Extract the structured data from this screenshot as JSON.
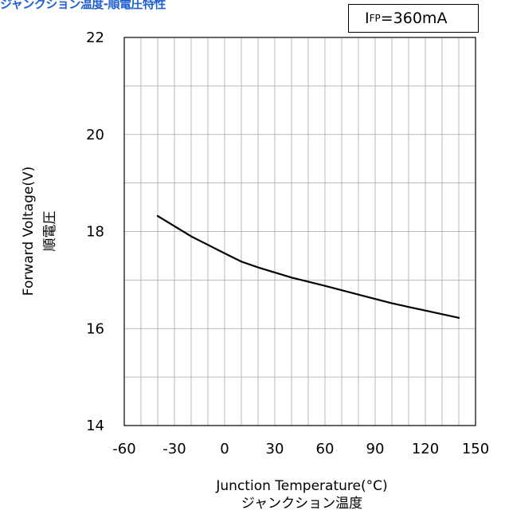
{
  "title": "ジャンクション温度-順電圧特性",
  "condition": {
    "symbol": "I",
    "subscript": "FP",
    "value": "=360mA"
  },
  "chart_data": {
    "type": "line",
    "title": "ジャンクション温度-順電圧特性",
    "xlabel": "Junction Temperature(°C)",
    "xlabel_sub": "ジャンクション温度",
    "ylabel": "Forward Voltage(V)",
    "ylabel_sub": "順電圧",
    "xlim": [
      -60,
      150
    ],
    "ylim": [
      14,
      22
    ],
    "x_ticks": [
      -60,
      -30,
      0,
      30,
      60,
      90,
      120,
      150
    ],
    "y_ticks": [
      14,
      16,
      18,
      20,
      22
    ],
    "grid": true,
    "series": [
      {
        "x": [
          -40,
          -20,
          0,
          10,
          20,
          40,
          60,
          80,
          100,
          120,
          140
        ],
        "y": [
          18.32,
          17.9,
          17.55,
          17.38,
          17.26,
          17.05,
          16.88,
          16.7,
          16.52,
          16.37,
          16.22
        ],
        "color": "#000000"
      }
    ]
  }
}
